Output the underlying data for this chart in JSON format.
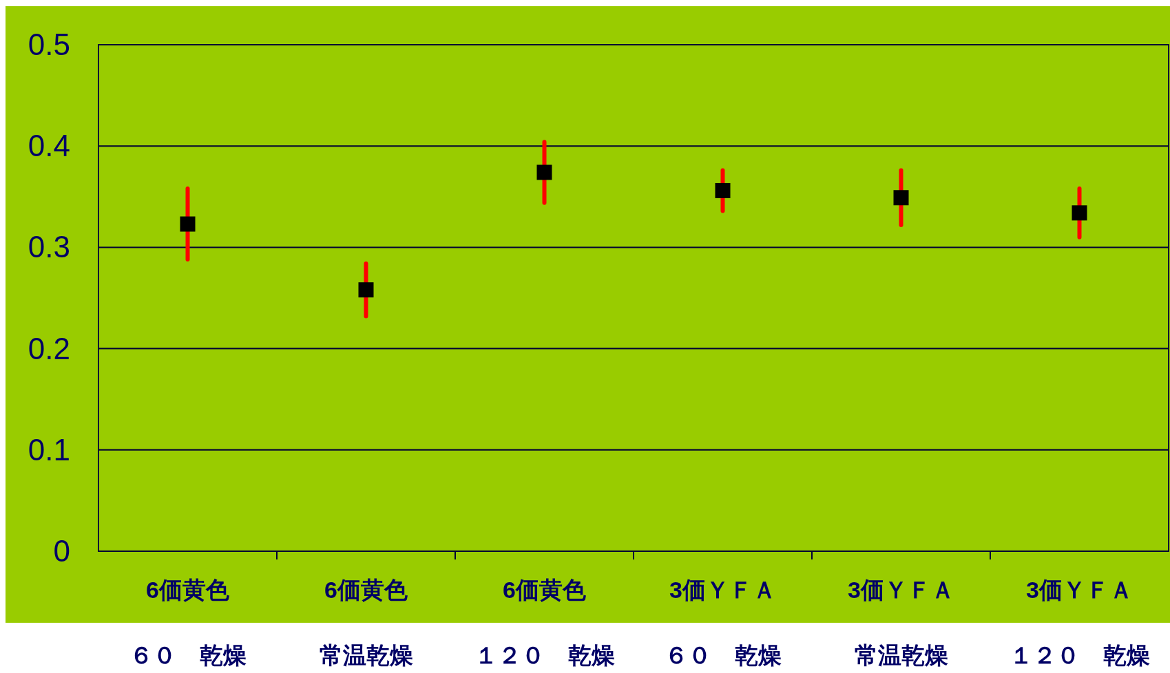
{
  "chart_data": {
    "type": "scatter",
    "categories": [
      "6価黄色",
      "6価黄色",
      "6価黄色",
      "3価ＹＦＡ",
      "3価ＹＦＡ",
      "3価ＹＦＡ"
    ],
    "annotations": [
      "６０　乾燥",
      "常温乾燥",
      "１２０　乾燥",
      "６０　乾燥",
      "常温乾燥",
      "１２０　乾燥"
    ],
    "values": [
      0.323,
      0.258,
      0.374,
      0.356,
      0.349,
      0.334
    ],
    "errors": [
      0.035,
      0.026,
      0.03,
      0.02,
      0.027,
      0.024
    ],
    "color": "#000000",
    "marker": "square",
    "ylim": [
      0,
      0.5
    ],
    "yticks": [
      0,
      0.1,
      0.2,
      0.3,
      0.4,
      0.5
    ],
    "grid": "y"
  }
}
